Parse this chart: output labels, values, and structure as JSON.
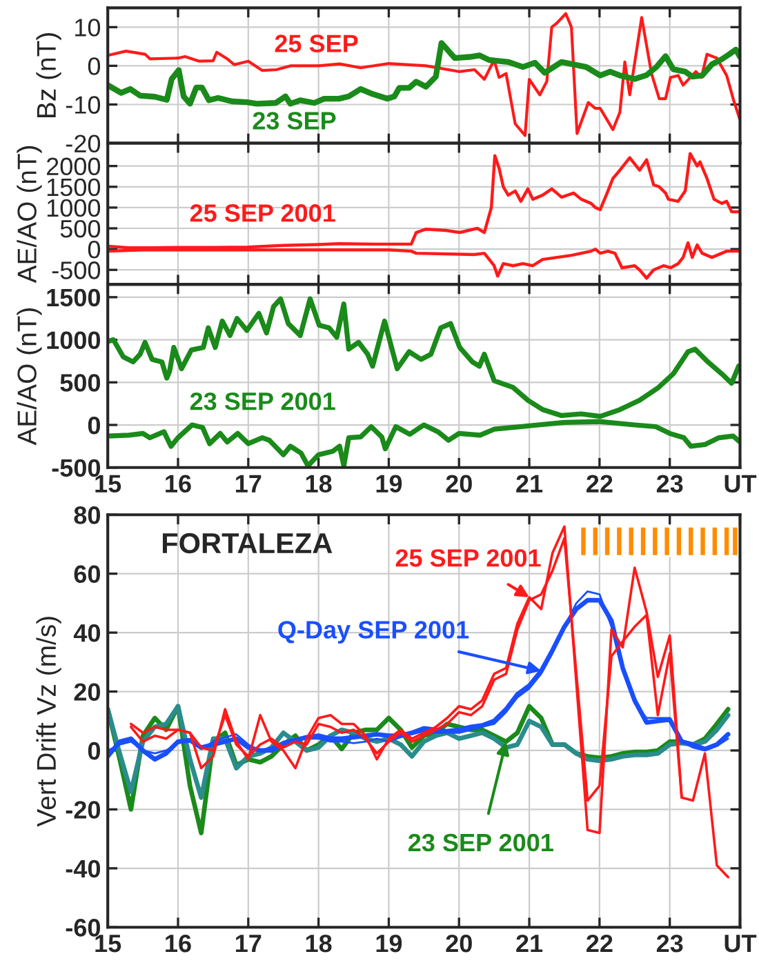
{
  "chart_data": [
    {
      "type": "line",
      "ylabel": "Bz (nT)",
      "xlim": [
        15,
        24
      ],
      "ylim": [
        -20,
        15
      ],
      "xticks": [
        16,
        17,
        18,
        19,
        20,
        21,
        22,
        23
      ],
      "yticks": [
        -20,
        -10,
        0,
        10
      ],
      "grid": true,
      "tick_labels": "y",
      "series": [
        {
          "name": "25 SEP",
          "color": "#ff1a1a",
          "x": [
            15.0,
            15.26,
            15.53,
            15.6,
            16.0,
            16.1,
            16.3,
            16.5,
            16.55,
            16.7,
            16.8,
            17.0,
            17.2,
            17.4,
            17.6,
            18.0,
            18.3,
            18.6,
            19.0,
            19.53,
            20.0,
            20.22,
            20.36,
            20.5,
            20.57,
            20.67,
            20.8,
            20.94,
            21.0,
            21.15,
            21.25,
            21.32,
            21.39,
            21.52,
            21.6,
            21.68,
            21.84,
            21.94,
            22.01,
            22.19,
            22.29,
            22.36,
            22.43,
            22.6,
            22.74,
            22.85,
            22.94,
            23.01,
            23.12,
            23.19,
            23.37,
            23.45,
            23.53,
            23.67,
            23.81,
            23.91,
            24.0
          ],
          "values": [
            2.7,
            3.8,
            3,
            1.8,
            2,
            2.4,
            1.2,
            1.3,
            3.5,
            1.8,
            0.3,
            1.2,
            -1.2,
            -1,
            0,
            0,
            0.5,
            -0.5,
            0.6,
            0,
            -1.5,
            -1,
            -3.5,
            1.5,
            -3,
            -2,
            -15,
            -18,
            -3.5,
            -7.5,
            -4,
            10,
            11,
            13.5,
            10,
            -17.5,
            -9.5,
            -11,
            -11,
            -16.5,
            -12,
            1,
            -7.5,
            12.5,
            -2,
            -8.5,
            -8.5,
            -3,
            -2.5,
            -5,
            -1.5,
            -3,
            3,
            2,
            -2.5,
            -9,
            -14
          ]
        },
        {
          "name": "23 SEP",
          "color": "#1a8a1a",
          "x": [
            15.0,
            15.19,
            15.32,
            15.46,
            15.67,
            15.84,
            15.91,
            16.01,
            16.08,
            16.17,
            16.26,
            16.34,
            16.44,
            16.57,
            16.77,
            16.98,
            17.12,
            17.39,
            17.53,
            17.6,
            17.74,
            17.94,
            18.08,
            18.29,
            18.43,
            18.6,
            18.77,
            18.98,
            19.08,
            19.15,
            19.29,
            19.39,
            19.53,
            19.67,
            19.75,
            19.94,
            20.15,
            20.29,
            20.43,
            20.7,
            20.91,
            21.08,
            21.22,
            21.46,
            21.81,
            22.01,
            22.15,
            22.29,
            22.5,
            22.67,
            22.81,
            22.94,
            23.05,
            23.22,
            23.32,
            23.46,
            23.6,
            23.74,
            23.84,
            23.94,
            24.0
          ],
          "values": [
            -5,
            -7,
            -6,
            -7.7,
            -8,
            -8.8,
            -3.4,
            -1.1,
            -7.9,
            -9.8,
            -5.6,
            -5.6,
            -8.9,
            -8.3,
            -9.2,
            -9.4,
            -9.8,
            -9.6,
            -7.9,
            -9.8,
            -8.9,
            -9.6,
            -8.5,
            -8.5,
            -7.9,
            -6,
            -7.3,
            -8.5,
            -7.9,
            -5.7,
            -5.7,
            -4.1,
            -5.4,
            -2.8,
            5.9,
            2,
            2.3,
            2.7,
            1.5,
            1,
            -0.3,
            0.8,
            -1.8,
            1,
            -0.3,
            -2.5,
            -1.5,
            -2.5,
            -3.4,
            -2.4,
            -0.3,
            2.5,
            -0.9,
            -1.5,
            -2.8,
            -2.5,
            0.4,
            1.7,
            2.9,
            4.2,
            2.3
          ]
        }
      ]
    },
    {
      "type": "line",
      "ylabel": "AE/AO (nT)",
      "xlim": [
        15,
        24
      ],
      "ylim": [
        -850,
        2550
      ],
      "xticks": [
        16,
        17,
        18,
        19,
        20,
        21,
        22,
        23
      ],
      "yticks": [
        -500,
        0,
        500,
        1000,
        1500,
        2000
      ],
      "grid": true,
      "tick_labels": "y",
      "series": [
        {
          "name": "25 SEP 2001",
          "color": "#ff1a1a",
          "x": [
            15.0,
            15.3,
            15.6,
            16.0,
            16.5,
            17.0,
            17.5,
            18.0,
            18.29,
            18.8,
            19.32,
            19.39,
            19.53,
            19.81,
            20.01,
            20.26,
            20.36,
            20.46,
            20.51,
            20.57,
            20.63,
            20.7,
            20.8,
            20.88,
            20.98,
            21.05,
            21.19,
            21.32,
            21.46,
            21.63,
            21.74,
            21.88,
            21.94,
            22.01,
            22.12,
            22.19,
            22.29,
            22.43,
            22.5,
            22.57,
            22.67,
            22.77,
            22.85,
            22.94,
            22.98,
            23.12,
            23.22,
            23.29,
            23.39,
            23.43,
            23.53,
            23.63,
            23.74,
            23.81,
            23.88,
            24.0
          ],
          "values": [
            70,
            30,
            30,
            40,
            40,
            50,
            90,
            110,
            130,
            120,
            120,
            400,
            480,
            450,
            400,
            500,
            400,
            1000,
            2250,
            1950,
            1500,
            1300,
            1400,
            1150,
            1450,
            1200,
            1300,
            1450,
            1250,
            1350,
            1200,
            1100,
            1000,
            950,
            1400,
            1700,
            1900,
            2200,
            2050,
            1900,
            2150,
            1550,
            1500,
            1350,
            1200,
            1150,
            1400,
            2300,
            2000,
            2100,
            1700,
            1200,
            1100,
            1150,
            900,
            900
          ]
        },
        {
          "color": "#ff1a1a",
          "x": [
            15.0,
            15.5,
            16.0,
            17.0,
            18.0,
            19.0,
            19.32,
            19.39,
            20.22,
            20.36,
            20.5,
            20.55,
            20.63,
            20.77,
            20.91,
            21.05,
            21.19,
            21.6,
            21.88,
            21.94,
            22.01,
            22.12,
            22.22,
            22.32,
            22.5,
            22.57,
            22.67,
            22.77,
            22.91,
            23.01,
            23.12,
            23.19,
            23.26,
            23.32,
            23.39,
            23.46,
            23.6,
            23.81,
            24.0
          ],
          "values": [
            -50,
            -20,
            -20,
            -20,
            -20,
            -20,
            -50,
            -100,
            -130,
            -100,
            -400,
            -650,
            -350,
            -400,
            -350,
            -400,
            -250,
            -150,
            -50,
            0,
            -100,
            -50,
            -100,
            -450,
            -400,
            -500,
            -700,
            -500,
            -400,
            -450,
            -350,
            -200,
            150,
            -200,
            100,
            -100,
            -200,
            -50,
            -50
          ]
        }
      ]
    },
    {
      "type": "line",
      "ylabel": "AE/AO (nT)",
      "xlim": [
        15,
        24
      ],
      "ylim": [
        -500,
        1650
      ],
      "xticks": [
        15,
        16,
        17,
        18,
        19,
        20,
        21,
        22,
        23,
        {
          "value": 24,
          "label": "UT"
        }
      ],
      "yticks": [
        -500,
        0,
        500,
        1000,
        1500
      ],
      "grid": true,
      "series": [
        {
          "name": "23 SEP 2001",
          "color": "#1a8a1a",
          "x": [
            15.0,
            15.08,
            15.22,
            15.36,
            15.46,
            15.53,
            15.63,
            15.77,
            15.84,
            15.88,
            15.94,
            16.05,
            16.19,
            16.36,
            16.43,
            16.53,
            16.63,
            16.74,
            16.84,
            16.98,
            17.15,
            17.26,
            17.36,
            17.46,
            17.57,
            17.74,
            17.88,
            18.01,
            18.15,
            18.26,
            18.36,
            18.43,
            18.57,
            18.7,
            18.77,
            18.94,
            19.12,
            19.29,
            19.46,
            19.6,
            19.74,
            19.88,
            20.01,
            20.19,
            20.29,
            20.36,
            20.5,
            20.77,
            20.98,
            21.19,
            21.46,
            21.74,
            22.01,
            22.29,
            22.57,
            22.84,
            23.05,
            23.26,
            23.36,
            23.53,
            23.74,
            23.88,
            23.98
          ],
          "values": [
            980,
            1000,
            800,
            740,
            830,
            970,
            770,
            740,
            550,
            630,
            910,
            660,
            880,
            910,
            1140,
            910,
            1220,
            1050,
            1250,
            1110,
            1310,
            1080,
            1390,
            1480,
            1190,
            1050,
            1480,
            1170,
            1140,
            1030,
            1420,
            890,
            970,
            830,
            690,
            1220,
            660,
            860,
            770,
            830,
            1140,
            1190,
            910,
            740,
            690,
            830,
            520,
            440,
            290,
            180,
            110,
            130,
            100,
            180,
            290,
            440,
            600,
            860,
            890,
            750,
            600,
            490,
            690
          ]
        },
        {
          "color": "#1a8a1a",
          "x": [
            15.0,
            15.3,
            15.5,
            15.6,
            15.8,
            15.9,
            16.0,
            16.2,
            16.35,
            16.45,
            16.6,
            16.7,
            16.85,
            17.0,
            17.2,
            17.3,
            17.5,
            17.6,
            17.75,
            17.85,
            18.0,
            18.2,
            18.3,
            18.36,
            18.43,
            18.6,
            18.75,
            18.9,
            18.95,
            19.1,
            19.3,
            19.5,
            19.7,
            19.85,
            20.0,
            20.3,
            20.5,
            21.0,
            21.5,
            22.0,
            22.5,
            22.8,
            23.0,
            23.2,
            23.3,
            23.5,
            23.7,
            23.9,
            24.0
          ],
          "values": [
            -130,
            -120,
            -100,
            -150,
            -80,
            -250,
            -150,
            0,
            -30,
            -220,
            -100,
            -200,
            -100,
            -220,
            -150,
            -180,
            -350,
            -250,
            -330,
            -480,
            -350,
            -310,
            -250,
            -480,
            -150,
            -140,
            -20,
            -140,
            -280,
            -20,
            -110,
            0,
            -80,
            -180,
            -100,
            -120,
            -50,
            -10,
            30,
            40,
            0,
            -20,
            -100,
            -150,
            -250,
            -230,
            -150,
            -130,
            -200
          ]
        }
      ]
    },
    {
      "type": "line",
      "ylabel": "Vert Drift Vz (m/s)",
      "xlim": [
        15,
        24
      ],
      "ylim": [
        -60,
        80
      ],
      "xticks": [
        15,
        16,
        17,
        18,
        19,
        20,
        21,
        22,
        23,
        {
          "value": 24,
          "label": "UT"
        }
      ],
      "yticks": [
        -60,
        -40,
        -20,
        0,
        20,
        40,
        60,
        80
      ],
      "grid": true,
      "annotations": [
        "FORTALEZA"
      ],
      "series": [
        {
          "name": "23 SEP 2001",
          "color": "#1a8a1a",
          "x": [
            15.0,
            15.17,
            15.33,
            15.5,
            15.67,
            15.83,
            16.0,
            16.17,
            16.33,
            16.5,
            16.67,
            16.83,
            17.0,
            17.17,
            17.33,
            17.5,
            17.67,
            17.83,
            18.0,
            18.17,
            18.33,
            18.5,
            18.67,
            18.83,
            19.0,
            19.17,
            19.33,
            19.5,
            19.67,
            19.83,
            20.0,
            20.17,
            20.33,
            20.5,
            20.67,
            20.83,
            21.0,
            21.17,
            21.33,
            21.5,
            21.67,
            21.83,
            22.0,
            22.17,
            22.33,
            22.5,
            22.67,
            22.83,
            23.0,
            23.17,
            23.33,
            23.5,
            23.67,
            23.83
          ],
          "values": [
            14,
            -3,
            -20,
            5,
            11,
            7,
            15,
            -12,
            -28,
            3,
            6,
            -5,
            -3,
            -4,
            -2,
            2,
            5,
            0,
            2,
            5,
            0.5,
            6,
            7,
            7,
            11,
            7,
            1,
            5,
            6,
            9,
            8,
            7,
            7,
            5,
            3,
            6,
            15,
            11,
            2,
            2,
            -1,
            -2,
            -2.5,
            -2,
            -1,
            -0.5,
            -0.5,
            0,
            3,
            3,
            2,
            4,
            9,
            14
          ]
        },
        {
          "color": "#2a8c8c",
          "x": [
            15.0,
            15.17,
            15.33,
            15.5,
            15.67,
            15.83,
            16.0,
            16.17,
            16.33,
            16.5,
            16.67,
            16.83,
            17.0,
            17.17,
            17.33,
            17.5,
            17.67,
            17.83,
            18.0,
            18.17,
            18.33,
            18.5,
            18.67,
            18.83,
            19.0,
            19.17,
            19.33,
            19.5,
            19.67,
            19.83,
            20.0,
            20.17,
            20.33,
            20.5,
            20.67,
            20.83,
            21.0,
            21.17,
            21.33,
            21.5,
            21.67,
            21.83,
            22.0,
            22.17,
            22.33,
            22.5,
            22.67,
            22.83,
            23.0,
            23.17,
            23.33,
            23.5,
            23.67,
            23.83
          ],
          "values": [
            14,
            -1,
            -14,
            3,
            8,
            9,
            15,
            -3,
            -16,
            4,
            4,
            -6,
            -2,
            -1,
            1,
            6,
            3,
            0,
            1,
            5,
            7,
            6,
            4,
            3,
            4,
            2,
            -2,
            3,
            5,
            6,
            4,
            5,
            6,
            4,
            1,
            2,
            10,
            8,
            2,
            2,
            -1,
            -3,
            -3.5,
            -3,
            -2,
            -1.5,
            -1.5,
            -1,
            2,
            2.5,
            2,
            3,
            7,
            12
          ]
        },
        {
          "name": "Q-Day SEP 2001",
          "color": "#1a4fff",
          "x": [
            15.0,
            15.17,
            15.33,
            15.5,
            15.67,
            15.83,
            16.0,
            16.17,
            16.33,
            16.5,
            16.67,
            16.83,
            17.0,
            17.17,
            17.33,
            17.5,
            17.67,
            17.83,
            18.0,
            18.17,
            18.33,
            18.5,
            18.67,
            18.83,
            19.0,
            19.17,
            19.33,
            19.5,
            19.67,
            19.83,
            20.0,
            20.17,
            20.33,
            20.5,
            20.67,
            20.83,
            21.0,
            21.17,
            21.33,
            21.5,
            21.67,
            21.83,
            22.0,
            22.17,
            22.33,
            22.5,
            22.67,
            22.83,
            23.0,
            23.17,
            23.33,
            23.5,
            23.67,
            23.83
          ],
          "values": [
            -2,
            3,
            4,
            0,
            -3,
            -1,
            3,
            3.5,
            1,
            2,
            3,
            4,
            1,
            0,
            0,
            2,
            3.5,
            4.5,
            5,
            4,
            4,
            4.5,
            5,
            5.5,
            5,
            5,
            6,
            7.5,
            7,
            6.5,
            7,
            8,
            8.5,
            10,
            14,
            19,
            22,
            27,
            34,
            42,
            48,
            51,
            51,
            44,
            28,
            17,
            9.5,
            10,
            10.5,
            3,
            2,
            0.5,
            2,
            5.5
          ]
        },
        {
          "color": "#1a4fff",
          "x": [
            15.0,
            15.17,
            15.33,
            15.5,
            15.67,
            15.83,
            16.0,
            16.17,
            16.33,
            16.5,
            16.67,
            16.83,
            17.0,
            17.17,
            17.33,
            17.5,
            17.67,
            17.83,
            18.0,
            18.17,
            18.33,
            18.5,
            18.67,
            18.83,
            19.0,
            19.17,
            19.33,
            19.5,
            19.67,
            19.83,
            20.0,
            20.17,
            20.33,
            20.5,
            20.67,
            20.83,
            21.0,
            21.17,
            21.33,
            21.5,
            21.67,
            21.83,
            22.0,
            22.17,
            22.33,
            22.5,
            22.67,
            22.83,
            23.0,
            23.17,
            23.33,
            23.5,
            23.67,
            23.83
          ],
          "values": [
            0,
            2,
            3,
            0,
            -1,
            0,
            2.5,
            3,
            0.5,
            3,
            4.5,
            5.5,
            2,
            0,
            1,
            3,
            4,
            4,
            4,
            3,
            3,
            2.5,
            3,
            4,
            3,
            4.5,
            5.5,
            6.5,
            6,
            6,
            6,
            7,
            8,
            9,
            13,
            18,
            21,
            26,
            33,
            42,
            50,
            54,
            53,
            42,
            27,
            16,
            11,
            11,
            11,
            3,
            1,
            0,
            1.5,
            4
          ]
        },
        {
          "name": "25 SEP 2001",
          "color": "#ff1a1a",
          "x": [
            15.33,
            15.5,
            15.67,
            15.83,
            16.0,
            16.17,
            16.33,
            16.5,
            16.67,
            16.83,
            17.0,
            17.17,
            17.33,
            17.5,
            17.67,
            17.83,
            18.0,
            18.17,
            18.33,
            18.5,
            18.67,
            18.83,
            19.0,
            19.17,
            19.33,
            19.5,
            19.67,
            19.83,
            20.0,
            20.17,
            20.33,
            20.5,
            20.67,
            20.83,
            21.0,
            21.17,
            21.33,
            21.5,
            21.83,
            22.0,
            22.17,
            22.33,
            22.5,
            22.67,
            22.83,
            23.0,
            23.17,
            23.33,
            23.5,
            23.67,
            23.83
          ],
          "values": [
            9,
            6,
            8,
            7,
            7,
            6,
            -6,
            -2,
            14,
            3,
            -3,
            12,
            3,
            0,
            -6,
            4,
            11,
            12,
            9,
            9,
            5,
            -3,
            4,
            7,
            4,
            6,
            8,
            11,
            15,
            14,
            17,
            26,
            28,
            43,
            52,
            48,
            67,
            76,
            -27,
            -28,
            41,
            35,
            62,
            47,
            25,
            39,
            -16,
            -17,
            -1,
            -39,
            -43
          ]
        },
        {
          "color": "#ff1a1a",
          "x": [
            15.33,
            15.5,
            15.67,
            15.83,
            16.0,
            16.17,
            16.33,
            16.5,
            16.67,
            16.83,
            17.0,
            17.17,
            17.33,
            17.5,
            17.67,
            17.83,
            18.0,
            18.17,
            18.33,
            18.5,
            18.67,
            18.83,
            19.0,
            19.17,
            19.33,
            19.5,
            19.67,
            19.83,
            20.0,
            20.17,
            20.33,
            20.5,
            20.67,
            20.83,
            21.0,
            21.17,
            21.33,
            21.5,
            21.83,
            22.0,
            22.17,
            22.33,
            22.5,
            22.67,
            22.83,
            23.0,
            23.17
          ],
          "values": [
            8,
            3,
            5,
            4,
            7,
            6,
            1,
            0,
            12,
            2,
            -2,
            2,
            4,
            1,
            3,
            2,
            9,
            8,
            6,
            7,
            4,
            -1,
            3,
            6,
            3,
            5,
            7,
            9,
            13,
            12,
            15,
            24,
            26,
            41,
            51,
            53,
            61,
            72,
            -17,
            -12,
            32,
            37,
            42,
            46,
            12,
            33,
            -16
          ]
        },
        {
          "type": "bar",
          "color": "#ff8c00",
          "x": [
            21.77,
            21.94,
            22.11,
            22.28,
            22.45,
            22.62,
            22.79,
            22.96,
            23.13,
            23.3,
            23.47,
            23.64,
            23.81,
            23.93
          ],
          "values": [
            10,
            10,
            10,
            10,
            10,
            10,
            10,
            10,
            10,
            10,
            10,
            10,
            10,
            10
          ],
          "base": [
            66,
            66,
            66,
            66,
            66,
            66,
            66,
            66,
            66,
            66,
            66,
            66,
            66,
            66
          ]
        }
      ]
    }
  ]
}
